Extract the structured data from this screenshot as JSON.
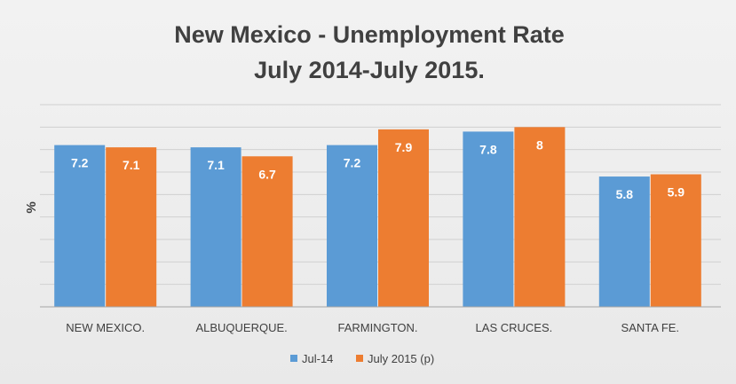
{
  "chart_data": {
    "type": "bar",
    "title_lines": [
      "New Mexico - Unemployment Rate",
      "July 2014-July 2015."
    ],
    "ylabel": "%",
    "xlabel": "",
    "categories": [
      "NEW MEXICO.",
      "ALBUQUERQUE.",
      "FARMINGTON.",
      "LAS CRUCES.",
      "SANTA FE."
    ],
    "series": [
      {
        "name": "Jul-14",
        "values": [
          7.2,
          7.1,
          7.2,
          7.8,
          5.8
        ],
        "color": "#5b9bd5"
      },
      {
        "name": "July 2015 (p)",
        "values": [
          7.1,
          6.7,
          7.9,
          8,
          5.9
        ],
        "color": "#ed7d31"
      }
    ],
    "ylim": [
      0,
      9
    ],
    "ytick_step": 1,
    "grid": true,
    "data_labels": true,
    "legend_position": "bottom",
    "colors": {
      "label_text": "#ffffff",
      "axis_text": "#404040",
      "grid": "#d0d0d0",
      "title": "#404040"
    }
  }
}
